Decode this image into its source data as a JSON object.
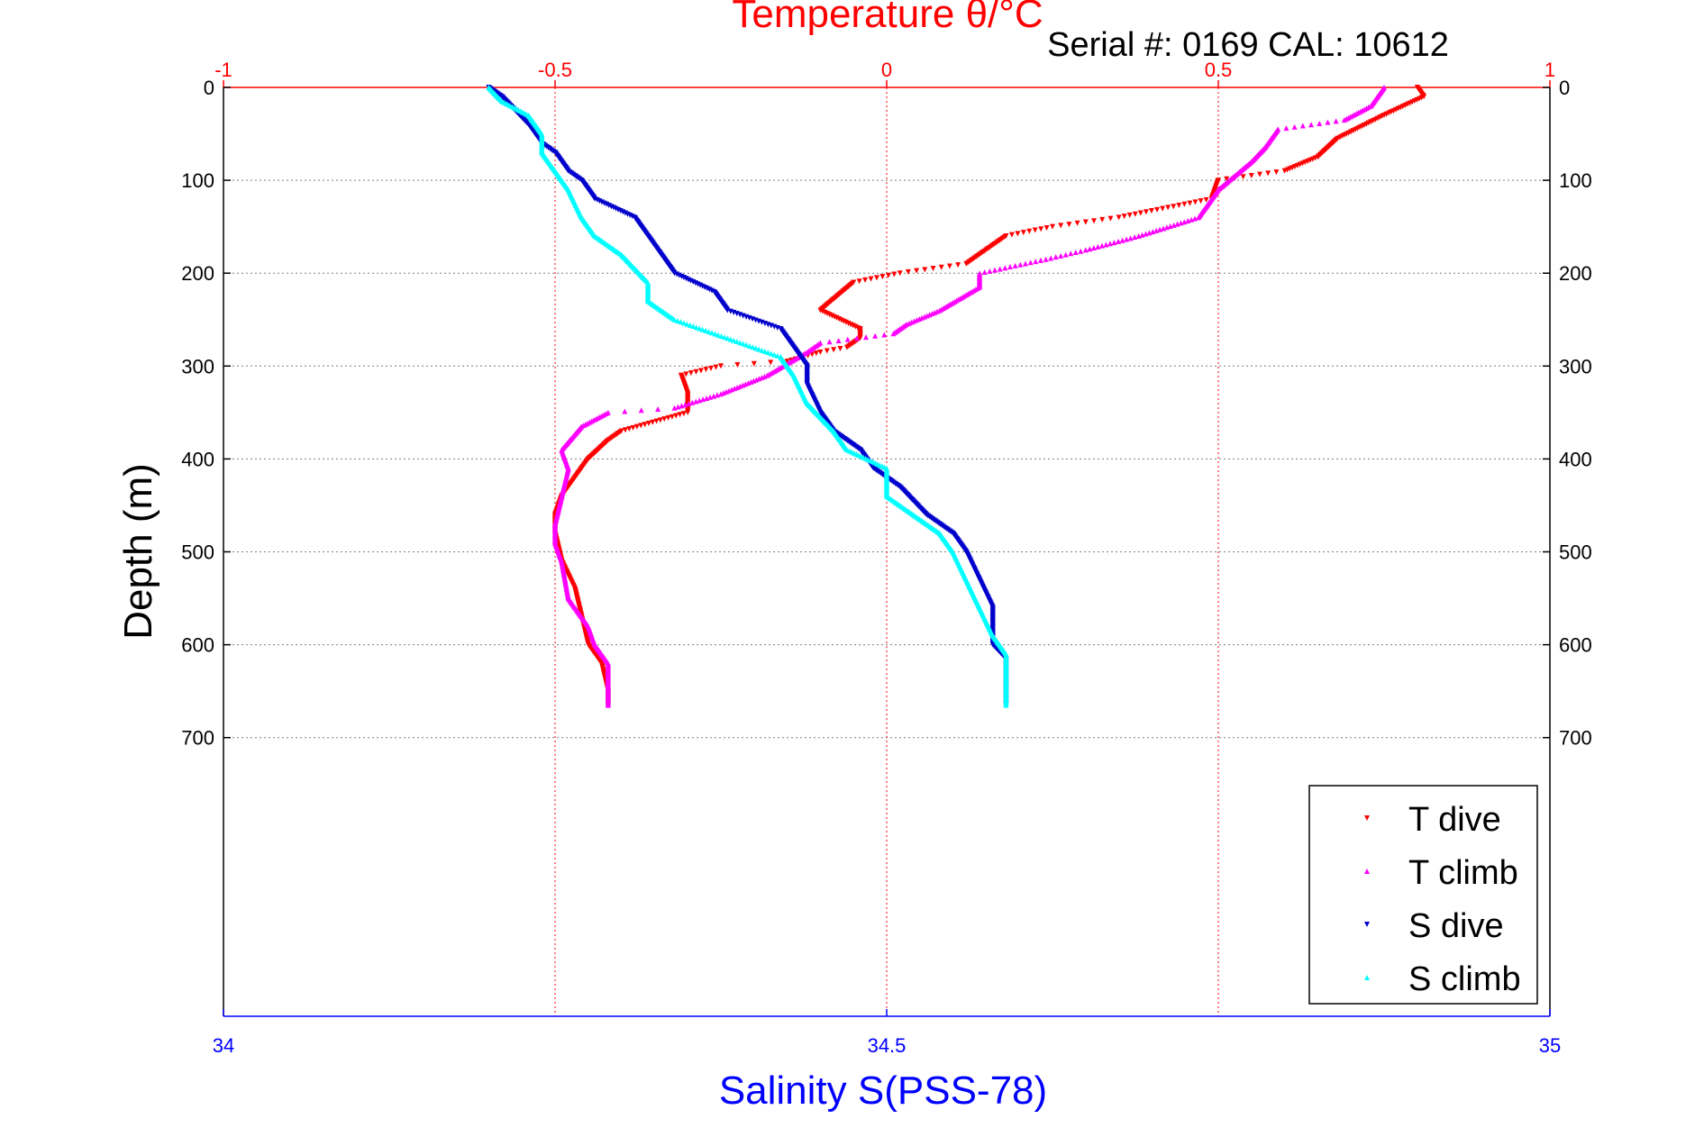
{
  "colors": {
    "temperature_axis": "#ff0000",
    "salinity_axis": "#0000ff",
    "t_dive": "#ff0000",
    "t_climb": "#ff00ff",
    "s_dive": "#0000cc",
    "s_climb": "#00ffff",
    "grid": "#7f7f7f"
  },
  "chart_data": {
    "type": "scatter",
    "title": "Temperature θ/°C",
    "subtitle": "Serial #: 0169 CAL: 10612",
    "ylabel": "Depth (m)",
    "x2label": "Salinity S(PSS-78)",
    "ylim": [
      0,
      1000
    ],
    "y_reversed": true,
    "y_ticks": [
      0,
      100,
      200,
      300,
      400,
      500,
      600,
      700
    ],
    "temperature_axis": {
      "position": "top",
      "range": [
        -1,
        1
      ],
      "ticks": [
        -1,
        -0.5,
        0,
        0.5,
        1
      ],
      "tick_labels": [
        "-1",
        "-0.5",
        "0",
        "0.5",
        "1"
      ]
    },
    "salinity_axis": {
      "position": "bottom",
      "range": [
        34,
        35
      ],
      "ticks": [
        34,
        34.5,
        35
      ],
      "tick_labels": [
        "34",
        "34.5",
        "35"
      ]
    },
    "grid": true,
    "legend_position": "bottom-right",
    "series": [
      {
        "name": "T dive",
        "axis": "temperature",
        "marker": "triangle-down",
        "points": [
          [
            0.8,
            0
          ],
          [
            0.81,
            10
          ],
          [
            0.75,
            30
          ],
          [
            0.68,
            55
          ],
          [
            0.65,
            75
          ],
          [
            0.6,
            90
          ],
          [
            0.5,
            100
          ],
          [
            0.49,
            120
          ],
          [
            0.35,
            140
          ],
          [
            0.25,
            150
          ],
          [
            0.18,
            160
          ],
          [
            0.16,
            170
          ],
          [
            0.14,
            180
          ],
          [
            0.12,
            190
          ],
          [
            0.02,
            200
          ],
          [
            -0.05,
            210
          ],
          [
            -0.1,
            240
          ],
          [
            -0.04,
            260
          ],
          [
            -0.04,
            270
          ],
          [
            -0.06,
            280
          ],
          [
            -0.1,
            285
          ],
          [
            -0.15,
            295
          ],
          [
            -0.25,
            300
          ],
          [
            -0.31,
            310
          ],
          [
            -0.3,
            330
          ],
          [
            -0.3,
            350
          ],
          [
            -0.4,
            370
          ],
          [
            -0.42,
            380
          ],
          [
            -0.45,
            400
          ],
          [
            -0.47,
            420
          ],
          [
            -0.49,
            440
          ],
          [
            -0.5,
            460
          ],
          [
            -0.5,
            480
          ],
          [
            -0.49,
            510
          ],
          [
            -0.47,
            540
          ],
          [
            -0.46,
            570
          ],
          [
            -0.45,
            600
          ],
          [
            -0.43,
            620
          ],
          [
            -0.42,
            650
          ],
          [
            -0.42,
            665
          ]
        ]
      },
      {
        "name": "T climb",
        "axis": "temperature",
        "marker": "triangle-up",
        "points": [
          [
            0.75,
            0
          ],
          [
            0.73,
            20
          ],
          [
            0.69,
            35
          ],
          [
            0.59,
            45
          ],
          [
            0.57,
            65
          ],
          [
            0.55,
            80
          ],
          [
            0.5,
            110
          ],
          [
            0.47,
            140
          ],
          [
            0.38,
            160
          ],
          [
            0.3,
            175
          ],
          [
            0.24,
            185
          ],
          [
            0.14,
            200
          ],
          [
            0.14,
            215
          ],
          [
            0.08,
            240
          ],
          [
            0.03,
            255
          ],
          [
            0.01,
            265
          ],
          [
            -0.1,
            275
          ],
          [
            -0.12,
            285
          ],
          [
            -0.18,
            310
          ],
          [
            -0.25,
            330
          ],
          [
            -0.32,
            345
          ],
          [
            -0.42,
            350
          ],
          [
            -0.46,
            365
          ],
          [
            -0.49,
            390
          ],
          [
            -0.48,
            410
          ],
          [
            -0.49,
            440
          ],
          [
            -0.5,
            470
          ],
          [
            -0.5,
            490
          ],
          [
            -0.49,
            510
          ],
          [
            -0.48,
            550
          ],
          [
            -0.45,
            580
          ],
          [
            -0.44,
            600
          ],
          [
            -0.42,
            620
          ],
          [
            -0.42,
            645
          ],
          [
            -0.42,
            665
          ]
        ]
      },
      {
        "name": "S dive",
        "axis": "salinity",
        "marker": "triangle-down",
        "points": [
          [
            34.2,
            0
          ],
          [
            34.21,
            10
          ],
          [
            34.22,
            25
          ],
          [
            34.23,
            40
          ],
          [
            34.24,
            60
          ],
          [
            34.25,
            70
          ],
          [
            34.26,
            90
          ],
          [
            34.27,
            100
          ],
          [
            34.28,
            120
          ],
          [
            34.31,
            140
          ],
          [
            34.32,
            160
          ],
          [
            34.33,
            180
          ],
          [
            34.34,
            200
          ],
          [
            34.37,
            220
          ],
          [
            34.38,
            240
          ],
          [
            34.42,
            260
          ],
          [
            34.43,
            280
          ],
          [
            34.44,
            300
          ],
          [
            34.44,
            320
          ],
          [
            34.45,
            350
          ],
          [
            34.46,
            370
          ],
          [
            34.48,
            390
          ],
          [
            34.49,
            410
          ],
          [
            34.51,
            430
          ],
          [
            34.53,
            460
          ],
          [
            34.55,
            480
          ],
          [
            34.56,
            500
          ],
          [
            34.57,
            530
          ],
          [
            34.58,
            560
          ],
          [
            34.58,
            580
          ],
          [
            34.58,
            600
          ],
          [
            34.59,
            615
          ],
          [
            34.59,
            640
          ],
          [
            34.59,
            665
          ]
        ]
      },
      {
        "name": "S climb",
        "axis": "salinity",
        "marker": "triangle-up",
        "points": [
          [
            34.2,
            0
          ],
          [
            34.21,
            15
          ],
          [
            34.23,
            30
          ],
          [
            34.24,
            50
          ],
          [
            34.24,
            70
          ],
          [
            34.25,
            90
          ],
          [
            34.26,
            110
          ],
          [
            34.27,
            140
          ],
          [
            34.28,
            160
          ],
          [
            34.3,
            180
          ],
          [
            34.32,
            210
          ],
          [
            34.32,
            230
          ],
          [
            34.34,
            250
          ],
          [
            34.38,
            270
          ],
          [
            34.42,
            290
          ],
          [
            34.43,
            310
          ],
          [
            34.44,
            340
          ],
          [
            34.46,
            370
          ],
          [
            34.47,
            390
          ],
          [
            34.5,
            410
          ],
          [
            34.5,
            440
          ],
          [
            34.52,
            460
          ],
          [
            34.54,
            480
          ],
          [
            34.55,
            500
          ],
          [
            34.56,
            530
          ],
          [
            34.57,
            560
          ],
          [
            34.58,
            590
          ],
          [
            34.59,
            610
          ],
          [
            34.59,
            640
          ],
          [
            34.59,
            665
          ]
        ]
      }
    ]
  }
}
